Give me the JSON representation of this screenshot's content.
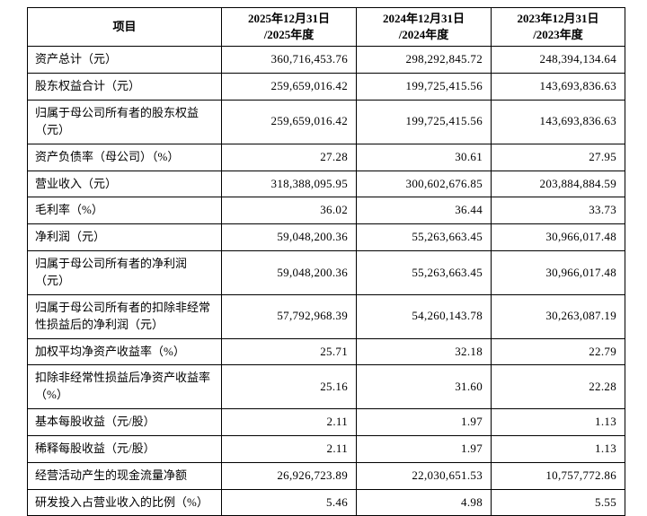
{
  "table": {
    "header": {
      "item_label": "项目",
      "columns": [
        {
          "line1": "2025年12月31日",
          "line2": "/2025年度"
        },
        {
          "line1": "2024年12月31日",
          "line2": "/2024年度"
        },
        {
          "line1": "2023年12月31日",
          "line2": "/2023年度"
        }
      ]
    },
    "rows": [
      {
        "item": "资产总计（元）",
        "values": [
          "360,716,453.76",
          "298,292,845.72",
          "248,394,134.64"
        ]
      },
      {
        "item": "股东权益合计（元）",
        "values": [
          "259,659,016.42",
          "199,725,415.56",
          "143,693,836.63"
        ]
      },
      {
        "item": "归属于母公司所有者的股东权益（元）",
        "values": [
          "259,659,016.42",
          "199,725,415.56",
          "143,693,836.63"
        ]
      },
      {
        "item": "资产负债率（母公司）（%）",
        "values": [
          "27.28",
          "30.61",
          "27.95"
        ]
      },
      {
        "item": "营业收入（元）",
        "values": [
          "318,388,095.95",
          "300,602,676.85",
          "203,884,884.59"
        ]
      },
      {
        "item": "毛利率（%）",
        "values": [
          "36.02",
          "36.44",
          "33.73"
        ]
      },
      {
        "item": "净利润（元）",
        "values": [
          "59,048,200.36",
          "55,263,663.45",
          "30,966,017.48"
        ]
      },
      {
        "item": "归属于母公司所有者的净利润（元）",
        "values": [
          "59,048,200.36",
          "55,263,663.45",
          "30,966,017.48"
        ]
      },
      {
        "item": "归属于母公司所有者的扣除非经常性损益后的净利润（元）",
        "values": [
          "57,792,968.39",
          "54,260,143.78",
          "30,263,087.19"
        ]
      },
      {
        "item": "加权平均净资产收益率（%）",
        "values": [
          "25.71",
          "32.18",
          "22.79"
        ]
      },
      {
        "item": "扣除非经常性损益后净资产收益率（%）",
        "values": [
          "25.16",
          "31.60",
          "22.28"
        ]
      },
      {
        "item": "基本每股收益（元/股）",
        "values": [
          "2.11",
          "1.97",
          "1.13"
        ]
      },
      {
        "item": "稀释每股收益（元/股）",
        "values": [
          "2.11",
          "1.97",
          "1.13"
        ]
      },
      {
        "item": "经营活动产生的现金流量净额",
        "values": [
          "26,926,723.89",
          "22,030,651.53",
          "10,757,772.86"
        ]
      },
      {
        "item": "研发投入占营业收入的比例（%）",
        "values": [
          "5.46",
          "4.98",
          "5.55"
        ]
      }
    ]
  }
}
